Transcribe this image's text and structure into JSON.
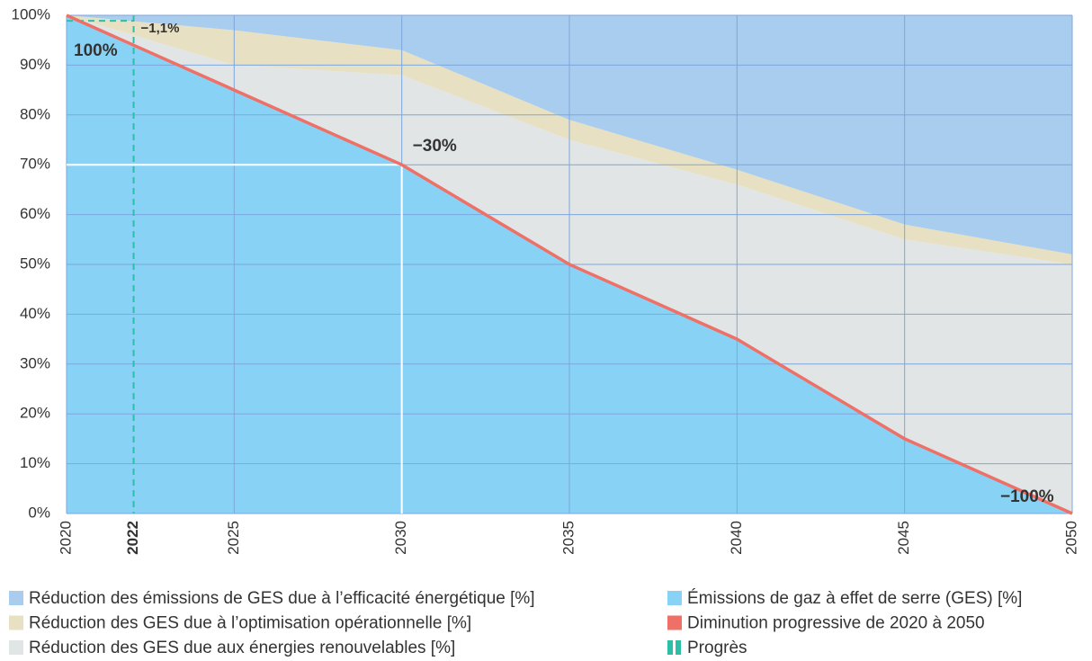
{
  "chart_data": {
    "type": "stacked_area",
    "x": [
      2020,
      2025,
      2030,
      2035,
      2040,
      2045,
      2050
    ],
    "series": [
      {
        "name": "Réduction des émissions de GES due à l’efficacité énergétique [%]",
        "color": "#a9cdee",
        "values": [
          0,
          3,
          7,
          21,
          31,
          42,
          48
        ]
      },
      {
        "name": "Réduction des GES due à l’optimisation opérationnelle [%]",
        "color": "#e8e0c2",
        "values": [
          0,
          7,
          5,
          4,
          3,
          3,
          2
        ]
      },
      {
        "name": "Réduction des GES due aux énergies renouvelables [%]",
        "color": "#e1e5e5",
        "values": [
          0,
          5,
          18,
          25,
          31,
          40,
          50
        ]
      },
      {
        "name": "Émissions de gaz à effet de serre (GES) [%]",
        "color": "#88d3f5",
        "values": [
          100,
          85,
          70,
          50,
          35,
          15,
          0
        ]
      }
    ],
    "line": {
      "name": "Diminution progressive de 2020 à 2050",
      "color": "#ee7066",
      "values": [
        100,
        85,
        70,
        50,
        35,
        15,
        0
      ]
    },
    "progress": {
      "name": "Progrès",
      "color": "#2bbfa8",
      "x": 2022,
      "label": "2022",
      "value": -1.1,
      "value_label": "−1,1%"
    },
    "annotations": [
      {
        "text": "100%",
        "x": 2020,
        "y": 100
      },
      {
        "text": "−30%",
        "x": 2030,
        "y": 70
      },
      {
        "text": "−100%",
        "x": 2050,
        "y": 0
      }
    ],
    "xlim": [
      2020,
      2050
    ],
    "xticks": [
      2020,
      2025,
      2030,
      2035,
      2040,
      2045,
      2050
    ],
    "ylim": [
      0,
      100
    ],
    "yticks": [
      {
        "value": 0,
        "label": "0%"
      },
      {
        "value": 10,
        "label": "10%"
      },
      {
        "value": 20,
        "label": "20%"
      },
      {
        "value": 30,
        "label": "30%"
      },
      {
        "value": 40,
        "label": "40%"
      },
      {
        "value": 50,
        "label": "50%"
      },
      {
        "value": 60,
        "label": "60%"
      },
      {
        "value": 70,
        "label": "70%"
      },
      {
        "value": 80,
        "label": "80%"
      },
      {
        "value": 90,
        "label": "90%"
      },
      {
        "value": 100,
        "label": "100%"
      }
    ],
    "grid": true
  }
}
